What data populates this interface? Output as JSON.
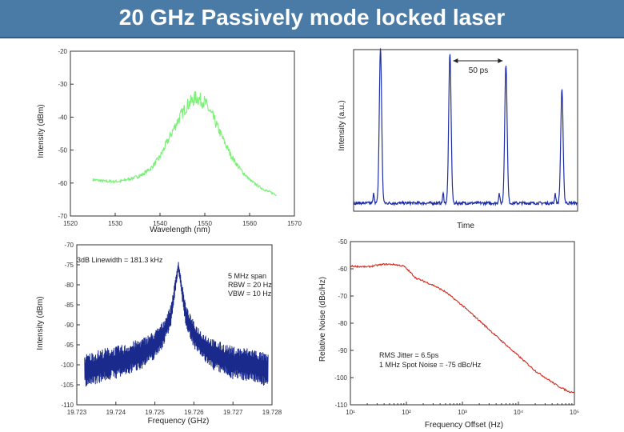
{
  "page_title": "20 GHz Passively mode locked laser",
  "chart_data": [
    {
      "id": "spectrum",
      "type": "line",
      "xlabel": "Wavelength (nm)",
      "ylabel": "Intensity (dBm)",
      "xlim": [
        1520,
        1570
      ],
      "ylim": [
        -70,
        -20
      ],
      "xticks": [
        "1520",
        "1530",
        "1540",
        "1550",
        "1560",
        "1570"
      ],
      "yticks": [
        "-20",
        "-30",
        "-40",
        "-50",
        "-60",
        "-70"
      ],
      "grid": false,
      "color": "#7df07a",
      "series": [
        {
          "x": [
            1525,
            1528,
            1531,
            1534,
            1536,
            1538,
            1540,
            1542,
            1544,
            1546,
            1548,
            1550,
            1552,
            1554,
            1556,
            1558,
            1560,
            1562,
            1564,
            1566
          ],
          "y": [
            -59,
            -59.5,
            -59.5,
            -58.5,
            -57.5,
            -55.5,
            -52,
            -46.5,
            -41,
            -36.5,
            -34,
            -35.5,
            -40.5,
            -46.5,
            -52,
            -56,
            -59,
            -61,
            -62.5,
            -63.5
          ]
        }
      ]
    },
    {
      "id": "pulse-train",
      "type": "line",
      "xlabel": "Time",
      "ylabel": "Intensity (a.u.)",
      "annotation": "50 ps",
      "grid": false,
      "color": "#1f2fa8",
      "series": [
        {
          "pulses": [
            {
              "t": 0.12,
              "peak": 0.96
            },
            {
              "t": 0.43,
              "peak": 0.93
            },
            {
              "t": 0.68,
              "peak": 0.86
            },
            {
              "t": 0.93,
              "peak": 0.7
            }
          ]
        }
      ]
    },
    {
      "id": "rf-spectrum",
      "type": "line",
      "xlabel": "Frequency (GHz)",
      "ylabel": "Intensity (dBm)",
      "xlim": [
        19.723,
        19.728
      ],
      "ylim": [
        -110,
        -70
      ],
      "xticks": [
        "19.723",
        "19.724",
        "19.725",
        "19.726",
        "19.727",
        "19.728"
      ],
      "yticks": [
        "-70",
        "-75",
        "-80",
        "-85",
        "-90",
        "-95",
        "-100",
        "-105",
        "-110"
      ],
      "grid": false,
      "color": "#1a2a8c",
      "annotations": [
        "3dB Linewidth = 181.3 kHz",
        "5 MHz span",
        "RBW = 20 Hz",
        "VBW = 10 Hz"
      ],
      "series": [
        {
          "x": [
            19.7232,
            19.7237,
            19.7242,
            19.7247,
            19.725,
            19.7252,
            19.7254,
            19.7255,
            19.7256,
            19.7257,
            19.7258,
            19.726,
            19.7262,
            19.7265,
            19.727,
            19.7275,
            19.7279
          ],
          "y": [
            -101.5,
            -100,
            -99,
            -97,
            -95,
            -92.5,
            -88,
            -82,
            -75,
            -82,
            -88,
            -92.5,
            -95,
            -97.5,
            -99.5,
            -100,
            -101.5
          ]
        }
      ]
    },
    {
      "id": "phase-noise",
      "type": "line",
      "xlabel": "Frequency Offset (Hz)",
      "ylabel": "Relative Noise (dBc/Hz)",
      "xscale": "log",
      "xlim": [
        10,
        100000
      ],
      "ylim": [
        -110,
        -50
      ],
      "xticks": [
        "10¹",
        "10²",
        "10³",
        "10⁴",
        "10⁵"
      ],
      "yticks": [
        "-50",
        "-60",
        "-70",
        "-80",
        "-90",
        "-100",
        "-110"
      ],
      "grid": false,
      "color": "#d42b1e",
      "annotations": [
        "RMS Jitter = 6.5ps",
        "1 MHz Spot Noise = -75 dBc/Hz"
      ],
      "series": [
        {
          "x": [
            10,
            20,
            40,
            60,
            90,
            120,
            150,
            200,
            300,
            500,
            1000,
            2000,
            5000,
            10000,
            20000,
            50000,
            80000,
            100000
          ],
          "y": [
            -59,
            -59.3,
            -58.3,
            -58.4,
            -59,
            -61.5,
            -63.5,
            -64.5,
            -66,
            -68.5,
            -73.5,
            -79,
            -86.5,
            -92,
            -97.5,
            -103,
            -105.2,
            -105.3
          ]
        }
      ]
    }
  ]
}
